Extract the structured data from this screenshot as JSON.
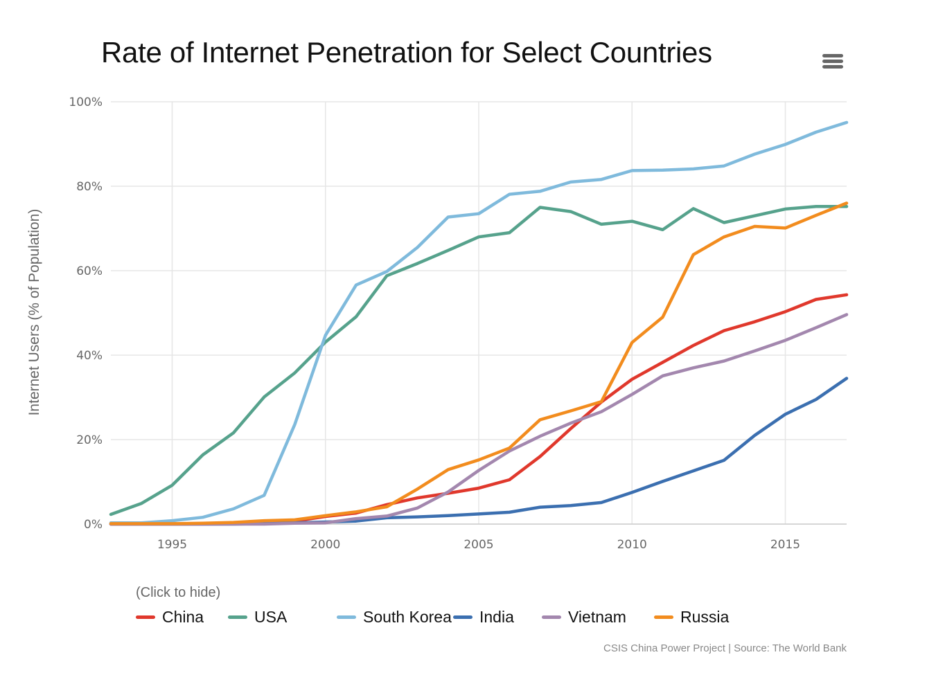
{
  "chart_data": {
    "type": "line",
    "title": "Rate of Internet Penetration for Select Countries",
    "xlabel": "",
    "ylabel": "Internet Users (% of Population)",
    "xlim": [
      1993,
      2017
    ],
    "ylim": [
      0,
      100
    ],
    "x_ticks": [
      "1995",
      "2000",
      "2005",
      "2010",
      "2015"
    ],
    "x_tick_values": [
      1995,
      2000,
      2005,
      2010,
      2015
    ],
    "y_ticks": [
      "0%",
      "20%",
      "40%",
      "60%",
      "80%",
      "100%"
    ],
    "y_tick_values": [
      0,
      20,
      40,
      60,
      80,
      100
    ],
    "x": [
      1993,
      1994,
      1995,
      1996,
      1997,
      1998,
      1999,
      2000,
      2001,
      2002,
      2003,
      2004,
      2005,
      2006,
      2007,
      2008,
      2009,
      2010,
      2011,
      2012,
      2013,
      2014,
      2015,
      2016,
      2017
    ],
    "series": [
      {
        "name": "China",
        "color": "#e0382c",
        "values": [
          0,
          0,
          0,
          0,
          0.03,
          0.2,
          0.7,
          1.8,
          2.6,
          4.6,
          6.2,
          7.3,
          8.5,
          10.5,
          16,
          22.6,
          28.9,
          34.3,
          38.3,
          42.3,
          45.8,
          47.9,
          50.3,
          53.2,
          54.3
        ]
      },
      {
        "name": "USA",
        "color": "#56a28c",
        "values": [
          2.3,
          4.9,
          9.2,
          16.4,
          21.6,
          30.1,
          35.8,
          43.1,
          49.1,
          58.8,
          61.7,
          64.8,
          68,
          69,
          75,
          74,
          71,
          71.7,
          69.7,
          74.7,
          71.4,
          73,
          74.6,
          75.2,
          75.2
        ]
      },
      {
        "name": "South Korea",
        "color": "#7fbadc",
        "values": [
          0.3,
          0.3,
          0.8,
          1.6,
          3.6,
          6.8,
          23.6,
          44.7,
          56.6,
          59.8,
          65.5,
          72.7,
          73.5,
          78.1,
          78.8,
          81,
          81.6,
          83.7,
          83.8,
          84.1,
          84.8,
          87.6,
          89.9,
          92.8,
          95.1
        ]
      },
      {
        "name": "India",
        "color": "#3b6fb0",
        "values": [
          0,
          0,
          0,
          0,
          0,
          0.1,
          0.3,
          0.5,
          0.7,
          1.5,
          1.7,
          2,
          2.4,
          2.8,
          4,
          4.4,
          5.1,
          7.5,
          10.1,
          12.6,
          15.1,
          21,
          26,
          29.5,
          34.5
        ]
      },
      {
        "name": "Vietnam",
        "color": "#a387ae",
        "values": [
          0,
          0,
          0,
          0,
          0,
          0,
          0.2,
          0.3,
          1.3,
          1.9,
          3.8,
          7.6,
          12.7,
          17.3,
          20.8,
          23.9,
          26.6,
          30.7,
          35.1,
          37,
          38.6,
          41,
          43.5,
          46.5,
          49.6
        ]
      },
      {
        "name": "Russia",
        "color": "#f28c1e",
        "values": [
          0.1,
          0.1,
          0.1,
          0.2,
          0.4,
          0.8,
          1,
          2,
          2.9,
          4.1,
          8.3,
          12.9,
          15.2,
          18,
          24.7,
          26.8,
          29,
          43,
          49,
          63.8,
          68,
          70.5,
          70.1,
          73.1,
          76
        ]
      }
    ]
  },
  "legend": {
    "hint": "(Click to hide)"
  },
  "source": "CSIS China Power Project | Source: The World Bank",
  "menu": {
    "icon": "hamburger-menu-icon"
  }
}
